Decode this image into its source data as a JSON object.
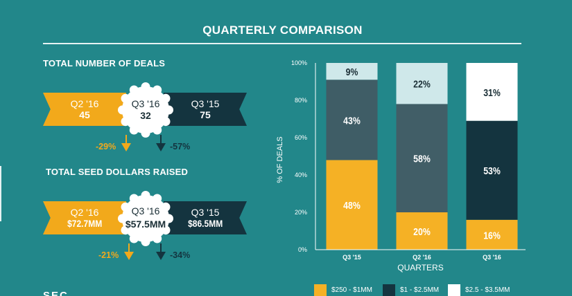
{
  "page": {
    "title": "QUARTERLY COMPARISON"
  },
  "deals": {
    "heading": "TOTAL NUMBER OF DEALS",
    "left": {
      "label": "Q2 '16",
      "value": "45"
    },
    "center": {
      "label": "Q3 '16",
      "value": "32"
    },
    "right": {
      "label": "Q3 '15",
      "value": "75"
    },
    "change_left": "-29%",
    "change_right": "-57%"
  },
  "dollars": {
    "heading": "TOTAL SEED DOLLARS RAISED",
    "left": {
      "label": "Q2 '16",
      "value": "$72.7MM"
    },
    "center": {
      "label": "Q3 '16",
      "value": "$57.5MM"
    },
    "right": {
      "label": "Q3 '15",
      "value": "$86.5MM"
    },
    "change_left": "-21%",
    "change_right": "-34%"
  },
  "colors": {
    "background": "#22878a",
    "yellow": "#f2a91b",
    "dark": "#14343f",
    "slate": "#415e67",
    "light": "#cfe8ea",
    "white": "#ffffff"
  },
  "chart_data": {
    "type": "bar",
    "stacked": true,
    "percent": true,
    "categories": [
      "Q3 '15",
      "Q2 '16",
      "Q3 '16"
    ],
    "xlabel": "QUARTERS",
    "ylabel": "% OF DEALS",
    "ylim": [
      0,
      100
    ],
    "yticks": [
      "0%",
      "20%",
      "40%",
      "60%",
      "80%",
      "100%"
    ],
    "series": [
      {
        "name": "$250 - $1MM",
        "values": [
          48,
          20,
          16
        ],
        "color": "#f5b125",
        "label_color": "#ffffff"
      },
      {
        "name": "$1 - $2.5MM",
        "values": [
          43,
          58,
          53
        ],
        "color_by_bar": [
          "#3f5d66",
          "#415e67",
          "#14343f"
        ],
        "label_color": "#ffffff"
      },
      {
        "name": "$2.5 - $3.5MM",
        "values": [
          9,
          22,
          31
        ],
        "color_by_bar": [
          "#cfe8ea",
          "#cfe8ea",
          "#ffffff"
        ],
        "label_color": "#1b2f36"
      }
    ],
    "data_labels": [
      [
        "48%",
        "43%",
        "9%"
      ],
      [
        "20%",
        "58%",
        "22%"
      ],
      [
        "16%",
        "53%",
        "31%"
      ]
    ],
    "legend_position": "bottom"
  },
  "footer": {
    "partial_heading": "SEC"
  }
}
